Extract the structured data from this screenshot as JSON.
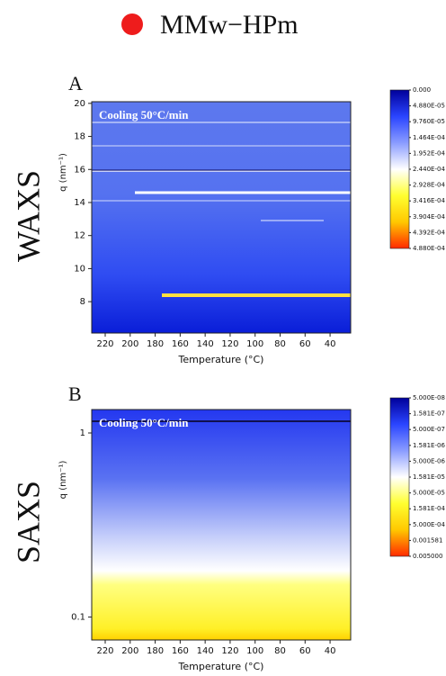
{
  "legend": {
    "label": "MMw−HPm",
    "color": "#ee1c1c"
  },
  "chart_data": [
    {
      "type": "heatmap",
      "panel": "A",
      "side_label": "WAXS",
      "annotation": "Cooling 50°C/min",
      "x_label": "Temperature (°C)",
      "y_label": "q (nm⁻¹)",
      "xlim": [
        230.8,
        23.5
      ],
      "xticks": [
        220,
        200,
        180,
        160,
        140,
        120,
        100,
        80,
        60,
        40
      ],
      "ylim": [
        6.1,
        20.1
      ],
      "yticks": [
        8,
        10,
        12,
        14,
        16,
        18,
        20
      ],
      "log": false,
      "colorbar": {
        "log": false,
        "lim": [
          0,
          0.000488
        ],
        "colors": [
          "#00009a",
          "#2a45ff",
          "#8a9cff",
          "#ffffff",
          "#ffff30",
          "#ffc800",
          "#ff2a00"
        ],
        "ticks": [
          {
            "value": 0,
            "label": "0.000"
          },
          {
            "value": 4.88e-05,
            "label": "4.880E-05"
          },
          {
            "value": 9.76e-05,
            "label": "9.760E-05"
          },
          {
            "value": 0.0001464,
            "label": "1.464E-04"
          },
          {
            "value": 0.0001952,
            "label": "1.952E-04"
          },
          {
            "value": 0.000244,
            "label": "2.440E-04"
          },
          {
            "value": 0.0002928,
            "label": "2.928E-04"
          },
          {
            "value": 0.0003416,
            "label": "3.416E-04"
          },
          {
            "value": 0.0003904,
            "label": "3.904E-04"
          },
          {
            "value": 0.0004392,
            "label": "4.392E-04"
          },
          {
            "value": 0.000488,
            "label": "4.880E-04"
          }
        ]
      }
    },
    {
      "type": "heatmap",
      "panel": "B",
      "side_label": "SAXS",
      "annotation": "Cooling 50°C/min",
      "x_label": "Temperature (°C)",
      "y_label": "q (nm⁻¹)",
      "xlim": [
        230.8,
        23.5
      ],
      "xticks": [
        220,
        200,
        180,
        160,
        140,
        120,
        100,
        80,
        60,
        40
      ],
      "ylim": [
        0.075,
        1.34
      ],
      "yticks": [
        0.1,
        1
      ],
      "log": true,
      "colorbar": {
        "log": true,
        "lim": [
          5e-08,
          0.005
        ],
        "colors": [
          "#00009a",
          "#2a45ff",
          "#8a9cff",
          "#ffffff",
          "#ffff30",
          "#ffc800",
          "#ff2a00"
        ],
        "ticks": [
          {
            "value": 5e-08,
            "label": "5.000E-08"
          },
          {
            "value": 1.581e-07,
            "label": "1.581E-07"
          },
          {
            "value": 5e-07,
            "label": "5.000E-07"
          },
          {
            "value": 1.581e-06,
            "label": "1.581E-06"
          },
          {
            "value": 5e-06,
            "label": "5.000E-06"
          },
          {
            "value": 1.581e-05,
            "label": "1.581E-05"
          },
          {
            "value": 5e-05,
            "label": "5.000E-05"
          },
          {
            "value": 0.0001581,
            "label": "1.581E-04"
          },
          {
            "value": 0.0005,
            "label": "5.000E-04"
          },
          {
            "value": 0.001581,
            "label": "0.001581"
          },
          {
            "value": 0.005,
            "label": "0.005000"
          }
        ]
      }
    }
  ]
}
